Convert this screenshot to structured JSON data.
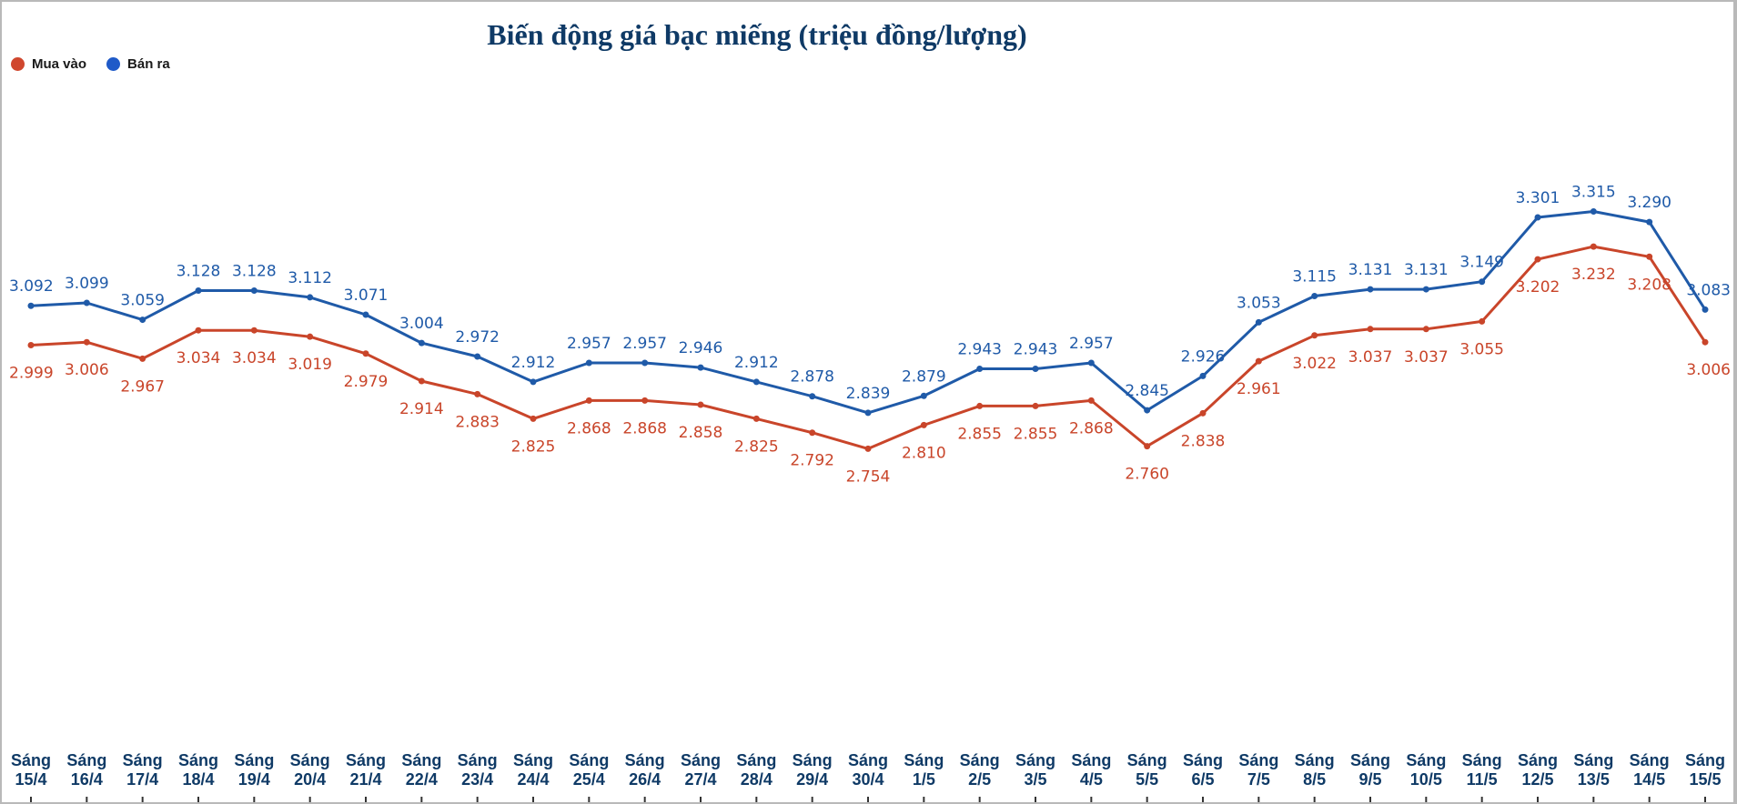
{
  "chart_data": {
    "type": "line",
    "title": "Biến động giá bạc miếng (triệu đồng/lượng)",
    "xlabel": "",
    "ylabel": "",
    "legend_position": "top-left",
    "grid": false,
    "ylim": [
      2.0,
      3.6
    ],
    "categories": [
      [
        "Sáng",
        "15/4"
      ],
      [
        "Sáng",
        "16/4"
      ],
      [
        "Sáng",
        "17/4"
      ],
      [
        "Sáng",
        "18/4"
      ],
      [
        "Sáng",
        "19/4"
      ],
      [
        "Sáng",
        "20/4"
      ],
      [
        "Sáng",
        "21/4"
      ],
      [
        "Sáng",
        "22/4"
      ],
      [
        "Sáng",
        "23/4"
      ],
      [
        "Sáng",
        "24/4"
      ],
      [
        "Sáng",
        "25/4"
      ],
      [
        "Sáng",
        "26/4"
      ],
      [
        "Sáng",
        "27/4"
      ],
      [
        "Sáng",
        "28/4"
      ],
      [
        "Sáng",
        "29/4"
      ],
      [
        "Sáng",
        "30/4"
      ],
      [
        "Sáng",
        "1/5"
      ],
      [
        "Sáng",
        "2/5"
      ],
      [
        "Sáng",
        "3/5"
      ],
      [
        "Sáng",
        "4/5"
      ],
      [
        "Sáng",
        "5/5"
      ],
      [
        "Sáng",
        "6/5"
      ],
      [
        "Sáng",
        "7/5"
      ],
      [
        "Sáng",
        "8/5"
      ],
      [
        "Sáng",
        "9/5"
      ],
      [
        "Sáng",
        "10/5"
      ],
      [
        "Sáng",
        "11/5"
      ],
      [
        "Sáng",
        "12/5"
      ],
      [
        "Sáng",
        "13/5"
      ],
      [
        "Sáng",
        "14/5"
      ],
      [
        "Sáng",
        "15/5"
      ]
    ],
    "series": [
      {
        "name": "Mua vào",
        "color": "#c9452a",
        "label_position": "below",
        "values": [
          2.999,
          3.006,
          2.967,
          3.034,
          3.034,
          3.019,
          2.979,
          2.914,
          2.883,
          2.825,
          2.868,
          2.868,
          2.858,
          2.825,
          2.792,
          2.754,
          2.81,
          2.855,
          2.855,
          2.868,
          2.76,
          2.838,
          2.961,
          3.022,
          3.037,
          3.037,
          3.055,
          3.202,
          3.232,
          3.208,
          3.006
        ],
        "labels": [
          "2.999",
          "3.006",
          "2.967",
          "3.034",
          "3.034",
          "3.019",
          "2.979",
          "2.914",
          "2.883",
          "2.825",
          "2.868",
          "2.868",
          "2.858",
          "2.825",
          "2.792",
          "2.754",
          "2.810",
          "2.855",
          "2.855",
          "2.868",
          "2.760",
          "2.838",
          "2.961",
          "3.022",
          "3.037",
          "3.037",
          "3.055",
          "3.202",
          "3.232",
          "3.208",
          "3.006"
        ]
      },
      {
        "name": "Bán ra",
        "color": "#1f5aa8",
        "label_position": "above",
        "values": [
          3.092,
          3.099,
          3.059,
          3.128,
          3.128,
          3.112,
          3.071,
          3.004,
          2.972,
          2.912,
          2.957,
          2.957,
          2.946,
          2.912,
          2.878,
          2.839,
          2.879,
          2.943,
          2.943,
          2.957,
          2.845,
          2.926,
          3.053,
          3.115,
          3.131,
          3.131,
          3.149,
          3.301,
          3.315,
          3.29,
          3.083
        ],
        "labels": [
          "3.092",
          "3.099",
          "3.059",
          "3.128",
          "3.128",
          "3.112",
          "3.071",
          "3.004",
          "2.972",
          "2.912",
          "2.957",
          "2.957",
          "2.946",
          "2.912",
          "2.878",
          "2.839",
          "2.879",
          "2.943",
          "2.943",
          "2.957",
          "2.845",
          "2.926",
          "3.053",
          "3.115",
          "3.131",
          "3.131",
          "3.149",
          "3.301",
          "3.315",
          "3.290",
          "3.083"
        ]
      }
    ]
  },
  "colors": {
    "title": "#0f3a66",
    "tick_text": "#0f3a66",
    "buy_label_text": "#c9452a",
    "sell_label_text": "#1f5aa8"
  }
}
